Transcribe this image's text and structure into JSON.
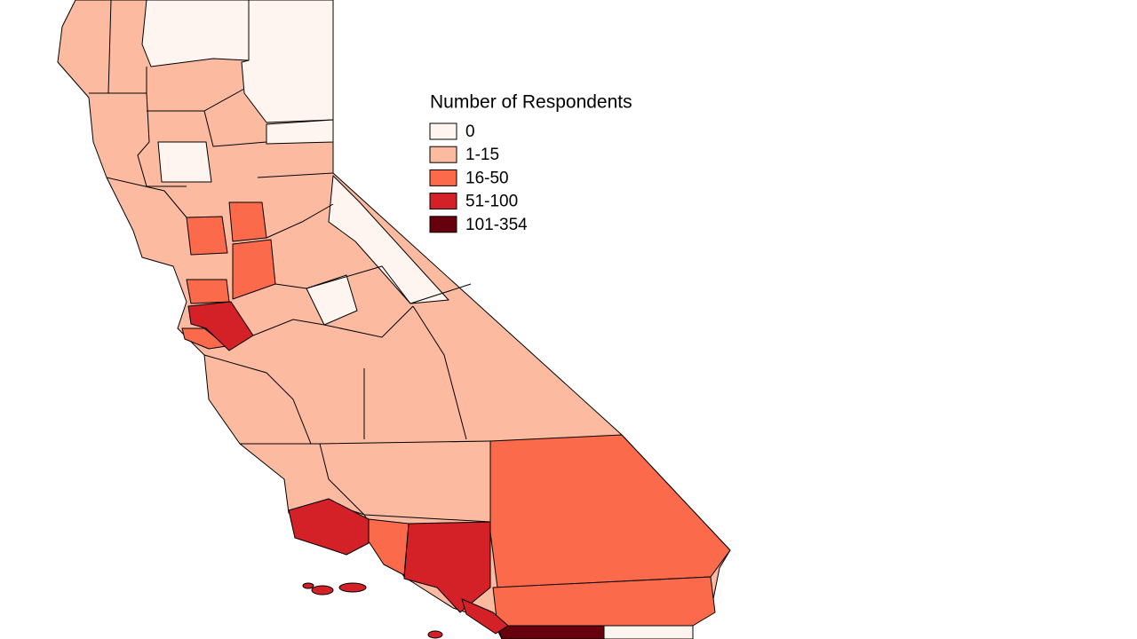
{
  "legend": {
    "title": "Number of Respondents",
    "items": [
      {
        "label": "0",
        "color": "#fff5f0"
      },
      {
        "label": "1-15",
        "color": "#fcbba1"
      },
      {
        "label": "16-50",
        "color": "#fb6a4a"
      },
      {
        "label": "51-100",
        "color": "#d42027"
      },
      {
        "label": "101-354",
        "color": "#67000d"
      }
    ]
  }
}
